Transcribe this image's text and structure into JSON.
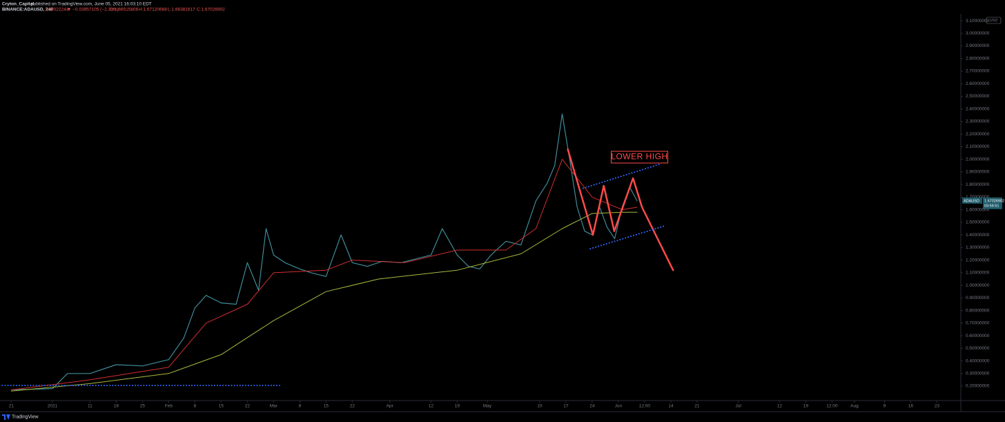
{
  "chart_data": {
    "type": "line",
    "title": "Cryton_Capital",
    "subtitle": "published on TradingView.com, June 05, 2021 16:03:10 EDT",
    "info": [
      "BINANCE:ADAUSD, 240",
      "1.67022244",
      "▼ −0.03957105 (−2.31%)",
      "O:1.66515806",
      "H:1.67120668",
      "L:1.66381617",
      "C:1.67026902"
    ],
    "currency": "USD",
    "brand": "TradingView",
    "grid": false,
    "xlim": [
      -3,
      253
    ],
    "ylim": [
      0.085,
      3.155
    ],
    "xticks": [
      {
        "value": 0,
        "label": "21"
      },
      {
        "value": 11,
        "label": "2021"
      },
      {
        "value": 21,
        "label": "11"
      },
      {
        "value": 28,
        "label": "18"
      },
      {
        "value": 35,
        "label": "25"
      },
      {
        "value": 42,
        "label": "Feb"
      },
      {
        "value": 49,
        "label": "8"
      },
      {
        "value": 56,
        "label": "15"
      },
      {
        "value": 63,
        "label": "22"
      },
      {
        "value": 70,
        "label": "Mar"
      },
      {
        "value": 77,
        "label": "8"
      },
      {
        "value": 84,
        "label": "15"
      },
      {
        "value": 91,
        "label": "22"
      },
      {
        "value": 101,
        "label": "Apr"
      },
      {
        "value": 112,
        "label": "12"
      },
      {
        "value": 119,
        "label": "19"
      },
      {
        "value": 127,
        "label": "May"
      },
      {
        "value": 141,
        "label": "10"
      },
      {
        "value": 148,
        "label": "17"
      },
      {
        "value": 155,
        "label": "24"
      },
      {
        "value": 162,
        "label": "Jun"
      },
      {
        "value": 169,
        "label": "12:00"
      },
      {
        "value": 176,
        "label": "14"
      },
      {
        "value": 183,
        "label": "21"
      },
      {
        "value": 194,
        "label": "Jul"
      },
      {
        "value": 205,
        "label": "12"
      },
      {
        "value": 212,
        "label": "19"
      },
      {
        "value": 219,
        "label": "12:00"
      },
      {
        "value": 225,
        "label": "Aug"
      },
      {
        "value": 233,
        "label": "9"
      },
      {
        "value": 240,
        "label": "16"
      },
      {
        "value": 247,
        "label": "23"
      }
    ],
    "yticks": [
      {
        "value": 0.2,
        "label": "0.20000000"
      },
      {
        "value": 0.3,
        "label": "0.30000000"
      },
      {
        "value": 0.4,
        "label": "0.40000000"
      },
      {
        "value": 0.5,
        "label": "0.50000000"
      },
      {
        "value": 0.6,
        "label": "0.60000000"
      },
      {
        "value": 0.7,
        "label": "0.70000000"
      },
      {
        "value": 0.8,
        "label": "0.80000000"
      },
      {
        "value": 0.9,
        "label": "0.90000000"
      },
      {
        "value": 1.0,
        "label": "1.00000000"
      },
      {
        "value": 1.1,
        "label": "1.10000000"
      },
      {
        "value": 1.2,
        "label": "1.20000000"
      },
      {
        "value": 1.3,
        "label": "1.30000000"
      },
      {
        "value": 1.4,
        "label": "1.40000000"
      },
      {
        "value": 1.5,
        "label": "1.50000000"
      },
      {
        "value": 1.6,
        "label": "1.60000000"
      },
      {
        "value": 1.7,
        "label": "1.70000000"
      },
      {
        "value": 1.8,
        "label": "1.80000000"
      },
      {
        "value": 1.9,
        "label": "1.90000000"
      },
      {
        "value": 2.0,
        "label": "2.00000000"
      },
      {
        "value": 2.1,
        "label": "2.10000000"
      },
      {
        "value": 2.2,
        "label": "2.20000000"
      },
      {
        "value": 2.3,
        "label": "2.30000000"
      },
      {
        "value": 2.4,
        "label": "2.40000000"
      },
      {
        "value": 2.5,
        "label": "2.50000000"
      },
      {
        "value": 2.6,
        "label": "2.60000000"
      },
      {
        "value": 2.7,
        "label": "2.70000000"
      },
      {
        "value": 2.8,
        "label": "2.80000000"
      },
      {
        "value": 2.9,
        "label": "2.90000000"
      },
      {
        "value": 3.0,
        "label": "3.00000000"
      },
      {
        "value": 3.1,
        "label": "3.10000000"
      }
    ],
    "series": [
      {
        "name": "ADAUSD",
        "color": "#3f8c99",
        "width": 1.2,
        "x": [
          0,
          11,
          15,
          21,
          28,
          35,
          42,
          46,
          49,
          52,
          56,
          60,
          63,
          66,
          68,
          70,
          73,
          77,
          80,
          84,
          88,
          91,
          95,
          99,
          104,
          108,
          112,
          115,
          119,
          122,
          125,
          128,
          132,
          136,
          140,
          143,
          145,
          147,
          149,
          151,
          153,
          155,
          157,
          159,
          161,
          163,
          165,
          167
        ],
        "values": [
          0.17,
          0.18,
          0.3,
          0.3,
          0.37,
          0.36,
          0.41,
          0.58,
          0.82,
          0.92,
          0.86,
          0.85,
          1.18,
          0.96,
          1.45,
          1.24,
          1.18,
          1.13,
          1.1,
          1.07,
          1.4,
          1.18,
          1.15,
          1.19,
          1.18,
          1.21,
          1.24,
          1.45,
          1.24,
          1.15,
          1.13,
          1.24,
          1.35,
          1.32,
          1.67,
          1.81,
          1.95,
          2.36,
          2.0,
          1.62,
          1.43,
          1.4,
          1.62,
          1.46,
          1.37,
          1.62,
          1.78,
          1.67
        ]
      },
      {
        "color": "#d32f2f",
        "width": 1,
        "x": [
          0,
          21,
          42,
          52,
          63,
          70,
          84,
          91,
          105,
          119,
          132,
          140,
          147,
          151,
          155,
          163,
          167
        ],
        "values": [
          0.17,
          0.25,
          0.35,
          0.7,
          0.85,
          1.1,
          1.12,
          1.2,
          1.18,
          1.28,
          1.28,
          1.45,
          2.0,
          1.85,
          1.7,
          1.6,
          1.62
        ]
      },
      {
        "color": "#a9bb3c",
        "width": 1,
        "x": [
          0,
          21,
          42,
          56,
          70,
          84,
          98,
          119,
          136,
          147,
          155,
          163,
          167
        ],
        "values": [
          0.16,
          0.22,
          0.3,
          0.45,
          0.72,
          0.95,
          1.05,
          1.12,
          1.25,
          1.45,
          1.57,
          1.58,
          1.58
        ]
      }
    ],
    "drawings": [
      {
        "color": "#ff4b4b",
        "width": 2.5,
        "dashed": false,
        "x": [
          148.5,
          155.2,
          158.1,
          160.9,
          165.9,
          168.3,
          176.6
        ],
        "values": [
          2.08,
          1.4,
          1.79,
          1.43,
          1.85,
          1.62,
          1.12
        ]
      },
      {
        "color": "#2f6bff",
        "width": 2,
        "dashed": true,
        "x": [
          152.6,
          172.9
        ],
        "values": [
          1.77,
          1.96
        ]
      },
      {
        "color": "#2f6bff",
        "width": 2,
        "dashed": true,
        "x": [
          154.5,
          174.2
        ],
        "values": [
          1.29,
          1.47
        ]
      },
      {
        "color": "#2f6bff",
        "width": 2,
        "dashed": true,
        "x": [
          -2.4,
          71.6
        ],
        "values": [
          0.205,
          0.205
        ]
      }
    ],
    "annotation": {
      "text": "LOWER HIGH",
      "x": 168,
      "y": 2.02
    },
    "last_price": {
      "symbol": "ADAUSD",
      "value": 1.67026902,
      "countdown": "03:56:51"
    }
  }
}
